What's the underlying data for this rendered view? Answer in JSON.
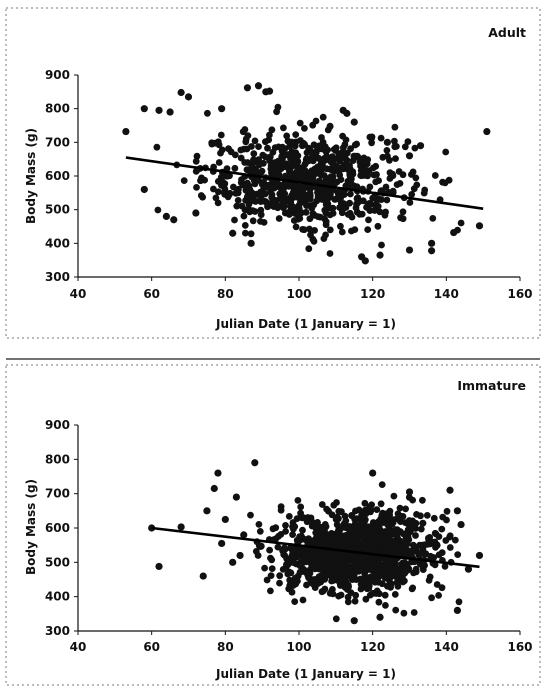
{
  "chart_data": [
    {
      "type": "scatter",
      "title": "Adult",
      "xlabel": "Julian Date  (1 January = 1)",
      "ylabel": "Body Mass (g)",
      "xlim": [
        40,
        160
      ],
      "ylim": [
        300,
        900
      ],
      "xticks": [
        40,
        60,
        80,
        100,
        120,
        140,
        160
      ],
      "yticks": [
        300,
        400,
        500,
        600,
        700,
        800,
        900
      ],
      "grid": false,
      "marker_color": "#111111",
      "trendline": {
        "x": [
          53,
          150
        ],
        "y": [
          655,
          503
        ]
      },
      "cloud": {
        "n": 720,
        "x_mean": 102,
        "x_sd": 14,
        "y_mean": 590,
        "y_sd": 72,
        "x_range": [
          56,
          148
        ],
        "y_range": [
          360,
          870
        ]
      },
      "points": [
        {
          "x": 53,
          "y": 732
        },
        {
          "x": 58,
          "y": 800
        },
        {
          "x": 62,
          "y": 795
        },
        {
          "x": 65,
          "y": 790
        },
        {
          "x": 68,
          "y": 848
        },
        {
          "x": 70,
          "y": 835
        },
        {
          "x": 79,
          "y": 800
        },
        {
          "x": 86,
          "y": 862
        },
        {
          "x": 89,
          "y": 868
        },
        {
          "x": 91,
          "y": 850
        },
        {
          "x": 92,
          "y": 852
        },
        {
          "x": 112,
          "y": 795
        },
        {
          "x": 113,
          "y": 786
        },
        {
          "x": 151,
          "y": 732
        },
        {
          "x": 58,
          "y": 560
        },
        {
          "x": 64,
          "y": 480
        },
        {
          "x": 66,
          "y": 470
        },
        {
          "x": 72,
          "y": 490
        },
        {
          "x": 82,
          "y": 430
        },
        {
          "x": 87,
          "y": 400
        },
        {
          "x": 117,
          "y": 360
        },
        {
          "x": 118,
          "y": 348
        },
        {
          "x": 122,
          "y": 365
        },
        {
          "x": 130,
          "y": 380
        },
        {
          "x": 136,
          "y": 400
        },
        {
          "x": 136,
          "y": 378
        },
        {
          "x": 142,
          "y": 432
        },
        {
          "x": 149,
          "y": 452
        },
        {
          "x": 133,
          "y": 690
        },
        {
          "x": 130,
          "y": 660
        },
        {
          "x": 124,
          "y": 700
        },
        {
          "x": 115,
          "y": 760
        }
      ]
    },
    {
      "type": "scatter",
      "title": "Immature",
      "xlabel": "Julian Date  (1 January = 1)",
      "ylabel": "Body Mass (g)",
      "xlim": [
        40,
        160
      ],
      "ylim": [
        300,
        900
      ],
      "xticks": [
        40,
        60,
        80,
        100,
        120,
        140,
        160
      ],
      "yticks": [
        300,
        400,
        500,
        600,
        700,
        800,
        900
      ],
      "grid": false,
      "marker_color": "#111111",
      "trendline": {
        "x": [
          60,
          149
        ],
        "y": [
          600,
          487
        ]
      },
      "cloud": {
        "n": 1100,
        "x_mean": 116,
        "x_sd": 11,
        "y_mean": 530,
        "y_sd": 60,
        "x_range": [
          86,
          144
        ],
        "y_range": [
          325,
          770
        ]
      },
      "points": [
        {
          "x": 60,
          "y": 600
        },
        {
          "x": 62,
          "y": 488
        },
        {
          "x": 68,
          "y": 603
        },
        {
          "x": 74,
          "y": 460
        },
        {
          "x": 78,
          "y": 760
        },
        {
          "x": 79,
          "y": 555
        },
        {
          "x": 82,
          "y": 500
        },
        {
          "x": 84,
          "y": 520
        },
        {
          "x": 88,
          "y": 790
        },
        {
          "x": 75,
          "y": 650
        },
        {
          "x": 77,
          "y": 715
        },
        {
          "x": 80,
          "y": 625
        },
        {
          "x": 83,
          "y": 690
        },
        {
          "x": 85,
          "y": 580
        },
        {
          "x": 115,
          "y": 330
        },
        {
          "x": 122,
          "y": 340
        },
        {
          "x": 143,
          "y": 360
        },
        {
          "x": 143,
          "y": 650
        },
        {
          "x": 144,
          "y": 610
        },
        {
          "x": 141,
          "y": 710
        },
        {
          "x": 130,
          "y": 705
        },
        {
          "x": 120,
          "y": 760
        },
        {
          "x": 149,
          "y": 520
        },
        {
          "x": 146,
          "y": 480
        }
      ]
    }
  ]
}
